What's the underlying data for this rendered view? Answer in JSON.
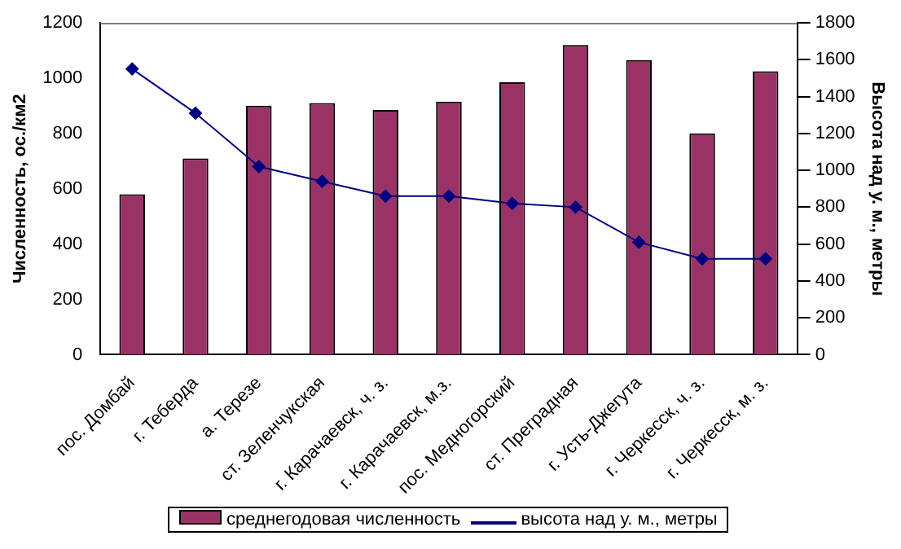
{
  "chart_data": {
    "type": "bar",
    "categories": [
      "пос. Домбай",
      "г. Теберда",
      "а. Терезе",
      "ст. Зеленчукская",
      "г. Карачаевск, ч. з.",
      "г. Карачаевск, м.з.",
      "пос. Медногорский",
      "ст. Преградная",
      "г. Усть-Джегута",
      "г. Черкесск, ч. з.",
      "г. Черкесск, м. з."
    ],
    "ylabel": "Численность, ос./км2",
    "y2label": "Высота над у. м., метры",
    "series": [
      {
        "name": "среднегодовая численность",
        "color": "#993366",
        "values": [
          580,
          710,
          900,
          910,
          885,
          915,
          985,
          1120,
          1065,
          800,
          1025
        ]
      },
      {
        "name": "высота над  у. м., метры",
        "type": "line",
        "axis": "y2",
        "color": "#000080",
        "marker": "diamond",
        "values": [
          1550,
          1310,
          1020,
          940,
          860,
          860,
          820,
          800,
          610,
          520,
          520
        ]
      }
    ],
    "ylim": [
      0,
      1200
    ],
    "yticks": [
      0,
      200,
      400,
      600,
      800,
      1000,
      1200
    ],
    "y2lim": [
      0,
      1800
    ],
    "y2ticks": [
      0,
      200,
      400,
      600,
      800,
      1000,
      1200,
      1400,
      1600,
      1800
    ],
    "grid": false,
    "legend": "bottom"
  }
}
